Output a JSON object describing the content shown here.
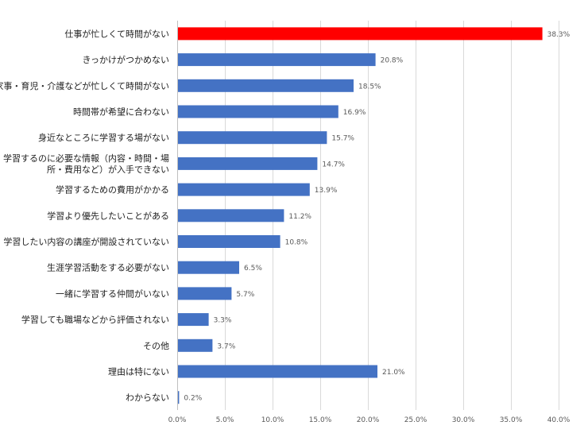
{
  "colors": {
    "highlight": "#ff0000",
    "bar": "#4472c4",
    "grid": "#d9d9d9",
    "text": "#222222",
    "tick_text": "#595959"
  },
  "chart_data": {
    "type": "bar",
    "orientation": "horizontal",
    "categories": [
      "仕事が忙しくて時間がない",
      "きっかけがつかめない",
      "家事・育児・介護などが忙しくて時間がない",
      "時間帯が希望に合わない",
      "身近なところに学習する場がない",
      "学習するのに必要な情報（内容・時間・場所・費用など）が入手できない",
      "学習するための費用がかかる",
      "学習より優先したいことがある",
      "学習したい内容の講座が開設されていない",
      "生涯学習活動をする必要がない",
      "一緒に学習する仲間がいない",
      "学習しても職場などから評価されない",
      "その他",
      "理由は特にない",
      "わからない"
    ],
    "category_lines": [
      [
        "仕事が忙しくて時間がない"
      ],
      [
        "きっかけがつかめない"
      ],
      [
        "家事・育児・介護などが忙しくて時間がない"
      ],
      [
        "時間帯が希望に合わない"
      ],
      [
        "身近なところに学習する場がない"
      ],
      [
        "学習するのに必要な情報（内容・時間・場",
        "所・費用など）が入手できない"
      ],
      [
        "学習するための費用がかかる"
      ],
      [
        "学習より優先したいことがある"
      ],
      [
        "学習したい内容の講座が開設されていない"
      ],
      [
        "生涯学習活動をする必要がない"
      ],
      [
        "一緒に学習する仲間がいない"
      ],
      [
        "学習しても職場などから評価されない"
      ],
      [
        "その他"
      ],
      [
        "理由は特にない"
      ],
      [
        "わからない"
      ]
    ],
    "values": [
      38.3,
      20.8,
      18.5,
      16.9,
      15.7,
      14.7,
      13.9,
      11.2,
      10.8,
      6.5,
      5.7,
      3.3,
      3.7,
      21.0,
      0.2
    ],
    "value_labels": [
      "38.3%",
      "20.8%",
      "18.5%",
      "16.9%",
      "15.7%",
      "14.7%",
      "13.9%",
      "11.2%",
      "10.8%",
      "6.5%",
      "5.7%",
      "3.3%",
      "3.7%",
      "21.0%",
      "0.2%"
    ],
    "highlight_index": 0,
    "xlim": [
      0,
      40
    ],
    "xticks": [
      0,
      5,
      10,
      15,
      20,
      25,
      30,
      35,
      40
    ],
    "xtick_labels": [
      "0.0%",
      "5.0%",
      "10.0%",
      "15.0%",
      "20.0%",
      "25.0%",
      "30.0%",
      "35.0%",
      "40.0%"
    ],
    "grid": true,
    "legend": "none",
    "title": "",
    "xlabel": "",
    "ylabel": ""
  }
}
